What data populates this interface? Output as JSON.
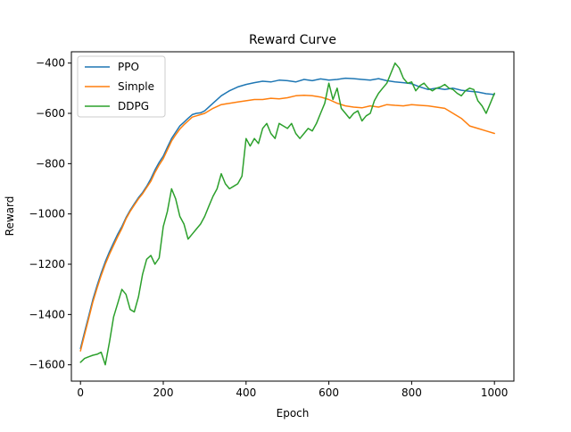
{
  "chart_data": {
    "type": "line",
    "title": "Reward Curve",
    "xlabel": "Epoch",
    "ylabel": "Reward",
    "xlim": [
      -22,
      1047
    ],
    "ylim": [
      -1665,
      -355
    ],
    "xticks": [
      0,
      200,
      400,
      600,
      800,
      1000
    ],
    "yticks": [
      -1600,
      -1400,
      -1200,
      -1000,
      -800,
      -600,
      -400
    ],
    "grid": false,
    "legend_position": "top-left",
    "series": [
      {
        "name": "PPO",
        "color": "#1f77b4",
        "x": [
          0,
          10,
          20,
          30,
          40,
          50,
          60,
          70,
          80,
          90,
          100,
          110,
          120,
          130,
          140,
          150,
          160,
          170,
          180,
          190,
          200,
          210,
          220,
          230,
          240,
          250,
          260,
          270,
          280,
          290,
          300,
          320,
          340,
          360,
          380,
          400,
          420,
          440,
          460,
          480,
          500,
          520,
          540,
          560,
          580,
          600,
          620,
          640,
          660,
          680,
          700,
          720,
          740,
          760,
          780,
          800,
          820,
          840,
          860,
          880,
          900,
          920,
          940,
          960,
          980,
          1000
        ],
        "y": [
          -1535,
          -1470,
          -1405,
          -1340,
          -1285,
          -1235,
          -1190,
          -1150,
          -1115,
          -1080,
          -1050,
          -1015,
          -985,
          -960,
          -935,
          -915,
          -890,
          -860,
          -825,
          -795,
          -770,
          -735,
          -700,
          -675,
          -650,
          -635,
          -620,
          -605,
          -600,
          -598,
          -590,
          -560,
          -530,
          -510,
          -495,
          -485,
          -478,
          -472,
          -475,
          -468,
          -470,
          -475,
          -465,
          -470,
          -463,
          -468,
          -465,
          -460,
          -462,
          -465,
          -468,
          -462,
          -470,
          -475,
          -478,
          -482,
          -495,
          -505,
          -500,
          -505,
          -500,
          -508,
          -512,
          -515,
          -522,
          -525
        ]
      },
      {
        "name": "Simple",
        "color": "#ff7f0e",
        "x": [
          0,
          10,
          20,
          30,
          40,
          50,
          60,
          70,
          80,
          90,
          100,
          110,
          120,
          130,
          140,
          150,
          160,
          170,
          180,
          190,
          200,
          210,
          220,
          230,
          240,
          250,
          260,
          270,
          280,
          290,
          300,
          320,
          340,
          360,
          380,
          400,
          420,
          440,
          460,
          480,
          500,
          520,
          540,
          560,
          580,
          600,
          620,
          640,
          660,
          680,
          700,
          720,
          740,
          760,
          780,
          800,
          820,
          840,
          860,
          880,
          900,
          920,
          940,
          960,
          980,
          1000
        ],
        "y": [
          -1545,
          -1480,
          -1415,
          -1350,
          -1295,
          -1245,
          -1200,
          -1160,
          -1125,
          -1090,
          -1058,
          -1020,
          -990,
          -965,
          -940,
          -920,
          -895,
          -870,
          -835,
          -805,
          -780,
          -745,
          -710,
          -685,
          -662,
          -645,
          -630,
          -615,
          -610,
          -605,
          -600,
          -580,
          -565,
          -560,
          -555,
          -550,
          -545,
          -545,
          -540,
          -542,
          -538,
          -530,
          -528,
          -530,
          -535,
          -545,
          -560,
          -570,
          -575,
          -578,
          -570,
          -575,
          -565,
          -568,
          -570,
          -565,
          -568,
          -570,
          -575,
          -580,
          -600,
          -620,
          -650,
          -660,
          -670,
          -680
        ]
      },
      {
        "name": "DDPG",
        "color": "#2ca02c",
        "x": [
          0,
          10,
          20,
          30,
          40,
          50,
          60,
          70,
          80,
          90,
          100,
          110,
          120,
          130,
          140,
          150,
          160,
          170,
          180,
          190,
          200,
          210,
          220,
          230,
          240,
          250,
          260,
          270,
          280,
          290,
          300,
          310,
          320,
          330,
          340,
          350,
          360,
          370,
          380,
          390,
          400,
          410,
          420,
          430,
          440,
          450,
          460,
          470,
          480,
          490,
          500,
          510,
          520,
          530,
          540,
          550,
          560,
          570,
          580,
          590,
          600,
          610,
          620,
          630,
          640,
          650,
          660,
          670,
          680,
          690,
          700,
          710,
          720,
          730,
          740,
          750,
          760,
          770,
          780,
          790,
          800,
          810,
          820,
          830,
          840,
          850,
          860,
          870,
          880,
          890,
          900,
          910,
          920,
          930,
          940,
          950,
          960,
          970,
          980,
          990,
          1000
        ],
        "y": [
          -1590,
          -1575,
          -1568,
          -1562,
          -1558,
          -1550,
          -1600,
          -1510,
          -1410,
          -1355,
          -1300,
          -1320,
          -1380,
          -1390,
          -1330,
          -1240,
          -1180,
          -1165,
          -1200,
          -1175,
          -1050,
          -990,
          -900,
          -940,
          -1010,
          -1040,
          -1100,
          -1080,
          -1060,
          -1040,
          -1010,
          -970,
          -930,
          -900,
          -840,
          -880,
          -900,
          -890,
          -880,
          -850,
          -700,
          -730,
          -700,
          -720,
          -660,
          -640,
          -680,
          -700,
          -640,
          -650,
          -660,
          -640,
          -680,
          -700,
          -680,
          -660,
          -670,
          -640,
          -600,
          -560,
          -480,
          -545,
          -500,
          -580,
          -600,
          -620,
          -600,
          -590,
          -630,
          -610,
          -600,
          -550,
          -520,
          -500,
          -480,
          -440,
          -400,
          -420,
          -460,
          -480,
          -475,
          -510,
          -490,
          -480,
          -500,
          -510,
          -500,
          -495,
          -485,
          -500,
          -505,
          -520,
          -530,
          -510,
          -500,
          -505,
          -550,
          -570,
          -600,
          -560,
          -520
        ]
      }
    ]
  }
}
